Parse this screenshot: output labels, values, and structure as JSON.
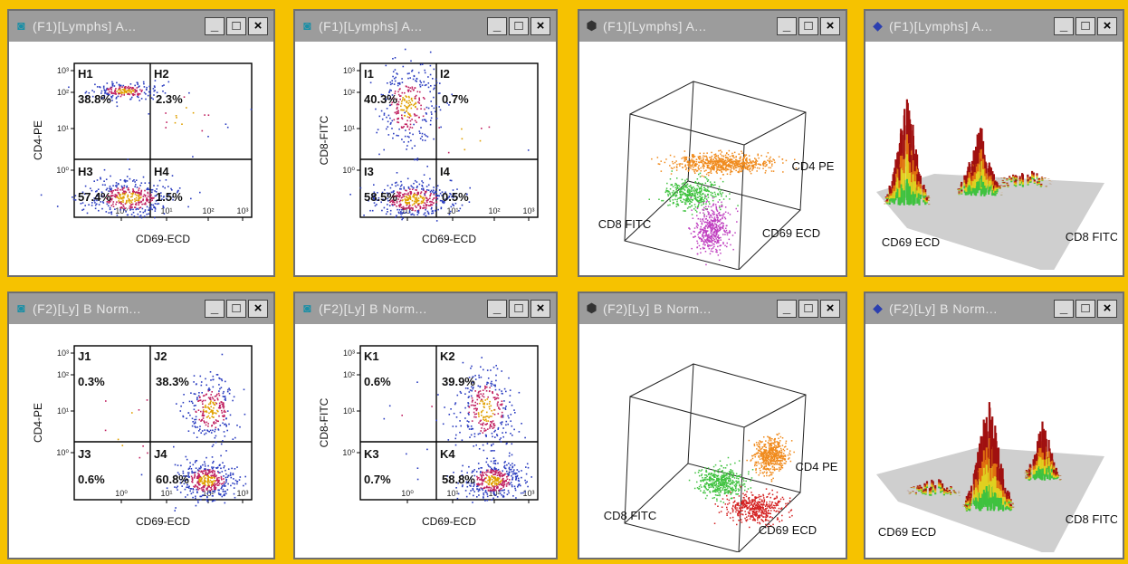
{
  "windows": [
    {
      "id": "w1",
      "title": "(F1)[Lymphs] A...",
      "icon": "scatter"
    },
    {
      "id": "w2",
      "title": "(F1)[Lymphs] A...",
      "icon": "scatter"
    },
    {
      "id": "w3",
      "title": "(F1)[Lymphs] A...",
      "icon": "cube"
    },
    {
      "id": "w4",
      "title": "(F1)[Lymphs] A...",
      "icon": "surface"
    },
    {
      "id": "w5",
      "title": "(F2)[Ly] B Norm...",
      "icon": "scatter"
    },
    {
      "id": "w6",
      "title": "(F2)[Ly] B Norm...",
      "icon": "scatter"
    },
    {
      "id": "w7",
      "title": "(F2)[Ly] B Norm...",
      "icon": "cube"
    },
    {
      "id": "w8",
      "title": "(F2)[Ly] B Norm...",
      "icon": "surface"
    }
  ],
  "titlebar_buttons": {
    "minimize": "_",
    "maximize": "□",
    "close": "×"
  },
  "ticks": {
    "y": [
      "10²",
      "10¹",
      "10⁰"
    ],
    "y_top": "10³",
    "x": [
      "10⁰",
      "10¹",
      "10²",
      "10³"
    ]
  },
  "colors": {
    "background": "#f6c200",
    "orange": "#f08a1c",
    "green": "#3fc23f",
    "magenta": "#c040c0",
    "red": "#d42020",
    "blue": "#2a3cc0"
  },
  "chart_data": [
    {
      "type": "scatter",
      "window": "w1",
      "xlabel": "CD69-ECD",
      "ylabel": "CD4-PE",
      "xscale": "log",
      "yscale": "log",
      "quadrants": [
        {
          "label": "H1",
          "percent": "38.8%"
        },
        {
          "label": "H2",
          "percent": "2.3%"
        },
        {
          "label": "H3",
          "percent": "57.4%"
        },
        {
          "label": "H4",
          "percent": "1.5%"
        }
      ]
    },
    {
      "type": "scatter",
      "window": "w2",
      "xlabel": "CD69-ECD",
      "ylabel": "CD8-FITC",
      "xscale": "log",
      "yscale": "log",
      "quadrants": [
        {
          "label": "I1",
          "percent": "40.3%"
        },
        {
          "label": "I2",
          "percent": "0.7%"
        },
        {
          "label": "I3",
          "percent": "58.5%"
        },
        {
          "label": "I4",
          "percent": "0.5%"
        }
      ]
    },
    {
      "type": "scatter",
      "window": "w3",
      "dimensions": "3d",
      "axes": {
        "x": "CD8 FITC",
        "y": "CD69 ECD",
        "z": "CD4 PE"
      },
      "clusters": [
        {
          "color": "orange"
        },
        {
          "color": "green"
        },
        {
          "color": "magenta"
        }
      ]
    },
    {
      "type": "surface",
      "window": "w4",
      "axes": {
        "x": "CD69 ECD",
        "y": "CD8 FITC"
      }
    },
    {
      "type": "scatter",
      "window": "w5",
      "xlabel": "CD69-ECD",
      "ylabel": "CD4-PE",
      "xscale": "log",
      "yscale": "log",
      "quadrants": [
        {
          "label": "J1",
          "percent": "0.3%"
        },
        {
          "label": "J2",
          "percent": "38.3%"
        },
        {
          "label": "J3",
          "percent": "0.6%"
        },
        {
          "label": "J4",
          "percent": "60.8%"
        }
      ]
    },
    {
      "type": "scatter",
      "window": "w6",
      "xlabel": "CD69-ECD",
      "ylabel": "CD8-FITC",
      "xscale": "log",
      "yscale": "log",
      "quadrants": [
        {
          "label": "K1",
          "percent": "0.6%"
        },
        {
          "label": "K2",
          "percent": "39.9%"
        },
        {
          "label": "K3",
          "percent": "0.7%"
        },
        {
          "label": "K4",
          "percent": "58.8%"
        }
      ]
    },
    {
      "type": "scatter",
      "window": "w7",
      "dimensions": "3d",
      "axes": {
        "x": "CD8 FITC",
        "y": "CD69 ECD",
        "z": "CD4 PE"
      },
      "clusters": [
        {
          "color": "orange"
        },
        {
          "color": "green"
        },
        {
          "color": "red"
        }
      ]
    },
    {
      "type": "surface",
      "window": "w8",
      "axes": {
        "x": "CD69 ECD",
        "y": "CD8 FITC"
      }
    }
  ]
}
